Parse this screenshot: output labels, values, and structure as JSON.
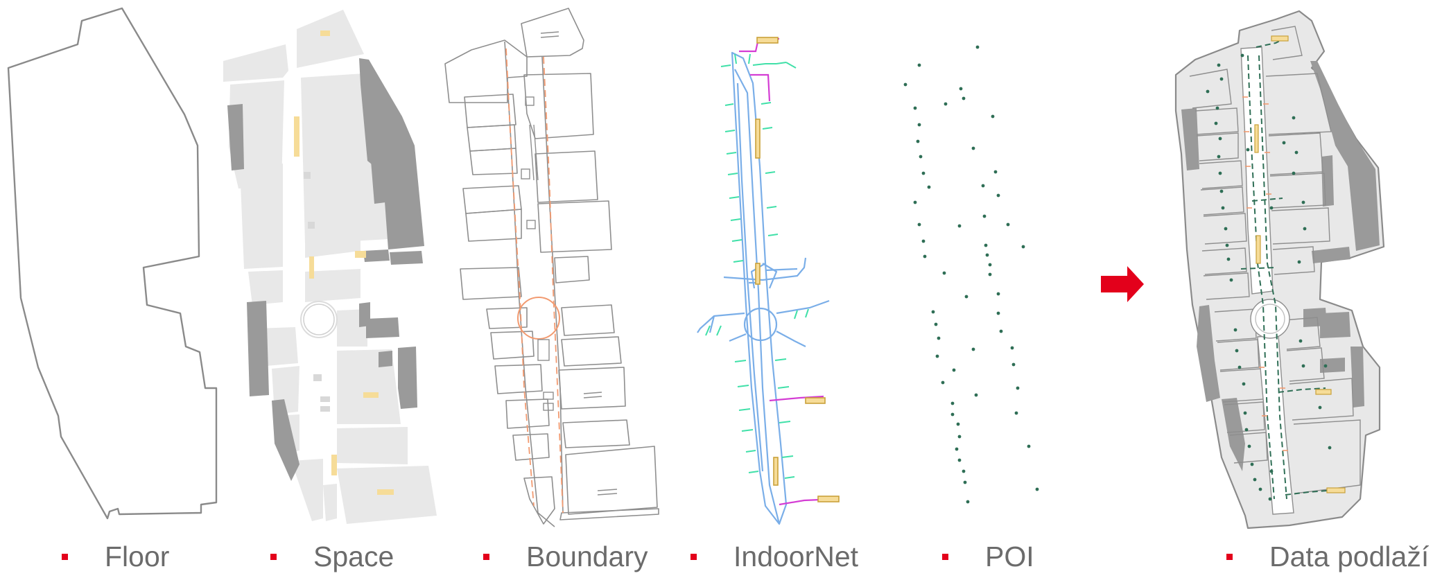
{
  "legend": {
    "floor": "Floor",
    "space": "Space",
    "boundary": "Boundary",
    "indoornet": "IndoorNet",
    "poi": "POI",
    "result": "Data podlaží"
  },
  "colors": {
    "outline": "#8a8a8a",
    "space_fill": "#e8e8e8",
    "dark_space": "#9a9a9a",
    "door": "#f6dc98",
    "boundary_door": "#f29a70",
    "net_blue": "#7aaee8",
    "net_green": "#3fe0a8",
    "net_magenta": "#d43cd4",
    "net_gold": "#c9a13a",
    "poi_dot": "#2e6e55",
    "arrow": "#e3001b",
    "legend_text": "#6b6b6b",
    "bullet": "#e3001b"
  },
  "icons": {
    "transition": "right-arrow-icon",
    "bullet": "square-bullet-icon"
  }
}
